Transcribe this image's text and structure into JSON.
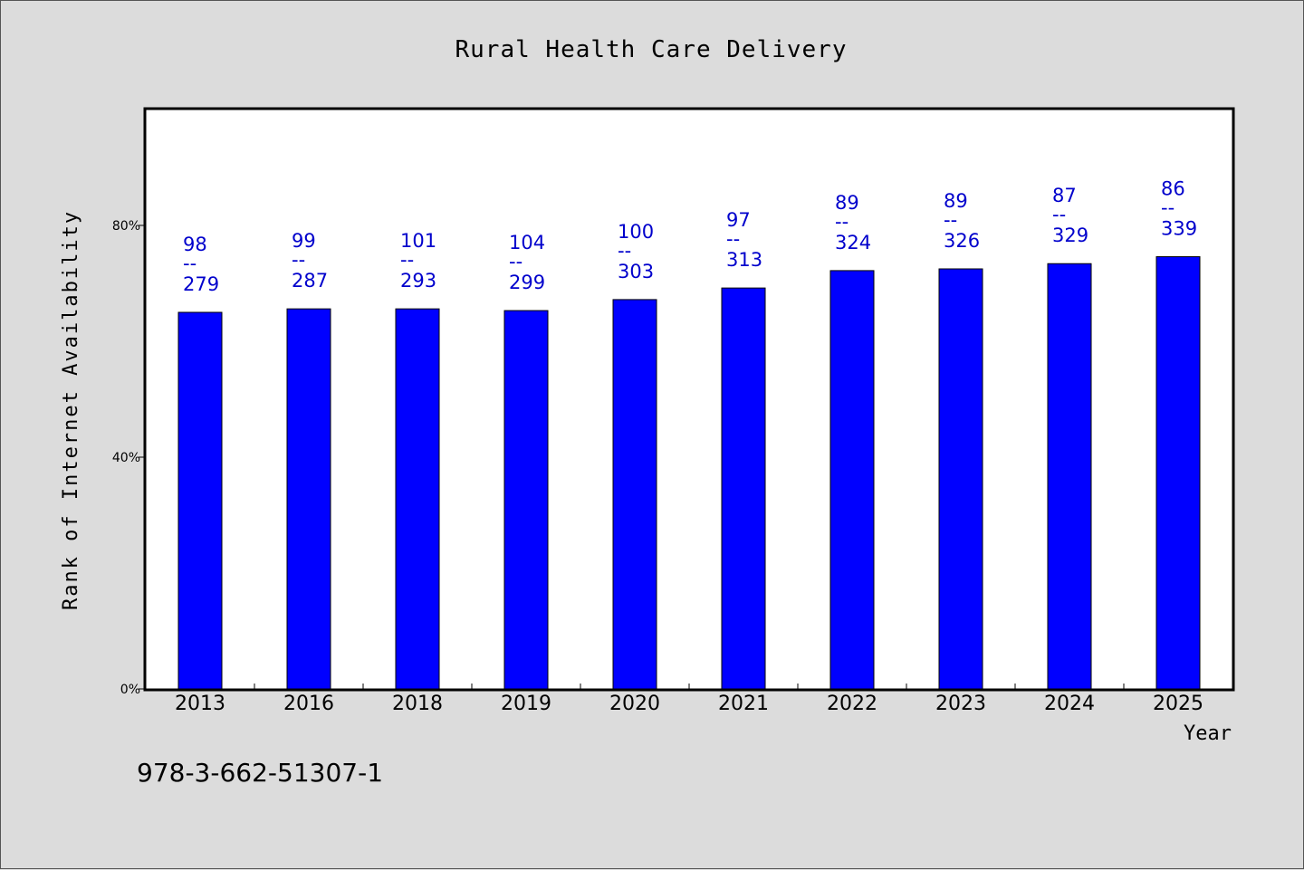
{
  "chart_data": {
    "type": "bar",
    "title": "Rural Health Care Delivery",
    "xlabel": "Year",
    "ylabel": "Rank of Internet Availability",
    "categories": [
      "2013",
      "2016",
      "2018",
      "2019",
      "2020",
      "2021",
      "2022",
      "2023",
      "2024",
      "2025"
    ],
    "values": [
      65,
      65.6,
      65.6,
      65.3,
      67.2,
      69.2,
      72.2,
      72.5,
      73.4,
      74.6
    ],
    "bar_labels": [
      {
        "top": "98",
        "sep": "--",
        "bottom": "279"
      },
      {
        "top": "99",
        "sep": "--",
        "bottom": "287"
      },
      {
        "top": "101",
        "sep": "--",
        "bottom": "293"
      },
      {
        "top": "104",
        "sep": "--",
        "bottom": "299"
      },
      {
        "top": "100",
        "sep": "--",
        "bottom": "303"
      },
      {
        "top": "97",
        "sep": "--",
        "bottom": "313"
      },
      {
        "top": "89",
        "sep": "--",
        "bottom": "324"
      },
      {
        "top": "89",
        "sep": "--",
        "bottom": "326"
      },
      {
        "top": "87",
        "sep": "--",
        "bottom": "329"
      },
      {
        "top": "86",
        "sep": "--",
        "bottom": "339"
      }
    ],
    "yticks": [
      {
        "value": 0,
        "label": "0%"
      },
      {
        "value": 40,
        "label": "40%"
      },
      {
        "value": 80,
        "label": "80%"
      }
    ],
    "ylim": [
      0,
      100
    ],
    "grid": false,
    "colors": {
      "bar": "#0000ff",
      "label": "#0000cc"
    }
  },
  "footer": {
    "code": "978-3-662-51307-1"
  }
}
